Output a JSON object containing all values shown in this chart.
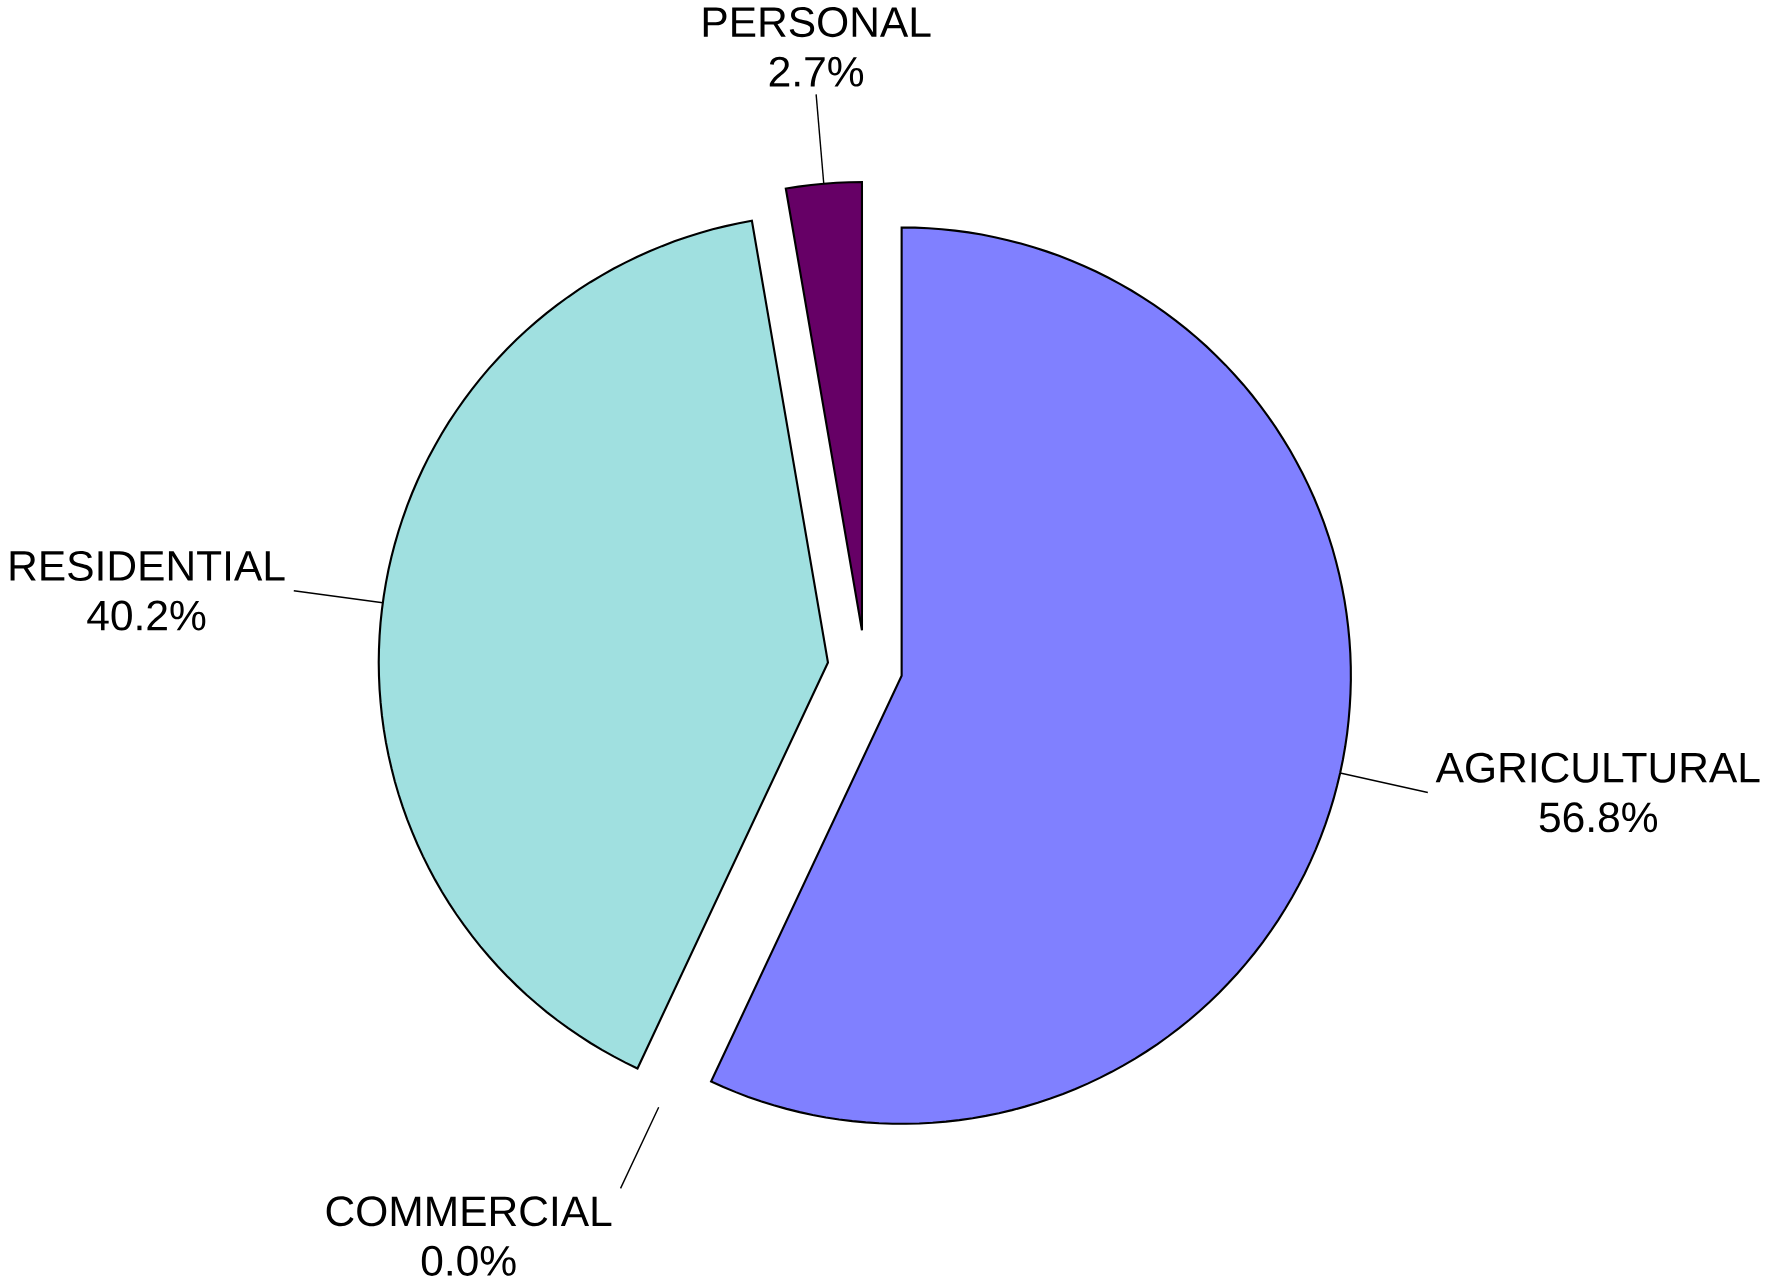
{
  "chart_data": {
    "type": "pie",
    "categories": [
      "AGRICULTURAL",
      "COMMERCIAL",
      "RESIDENTIAL",
      "PERSONAL"
    ],
    "values": [
      56.8,
      0.0,
      40.2,
      2.7
    ],
    "value_labels": [
      "56.8%",
      "0.0%",
      "40.2%",
      "2.7%"
    ],
    "colors": [
      "#8080ff",
      "#4a1030",
      "#a0e0e0",
      "#660066"
    ]
  }
}
